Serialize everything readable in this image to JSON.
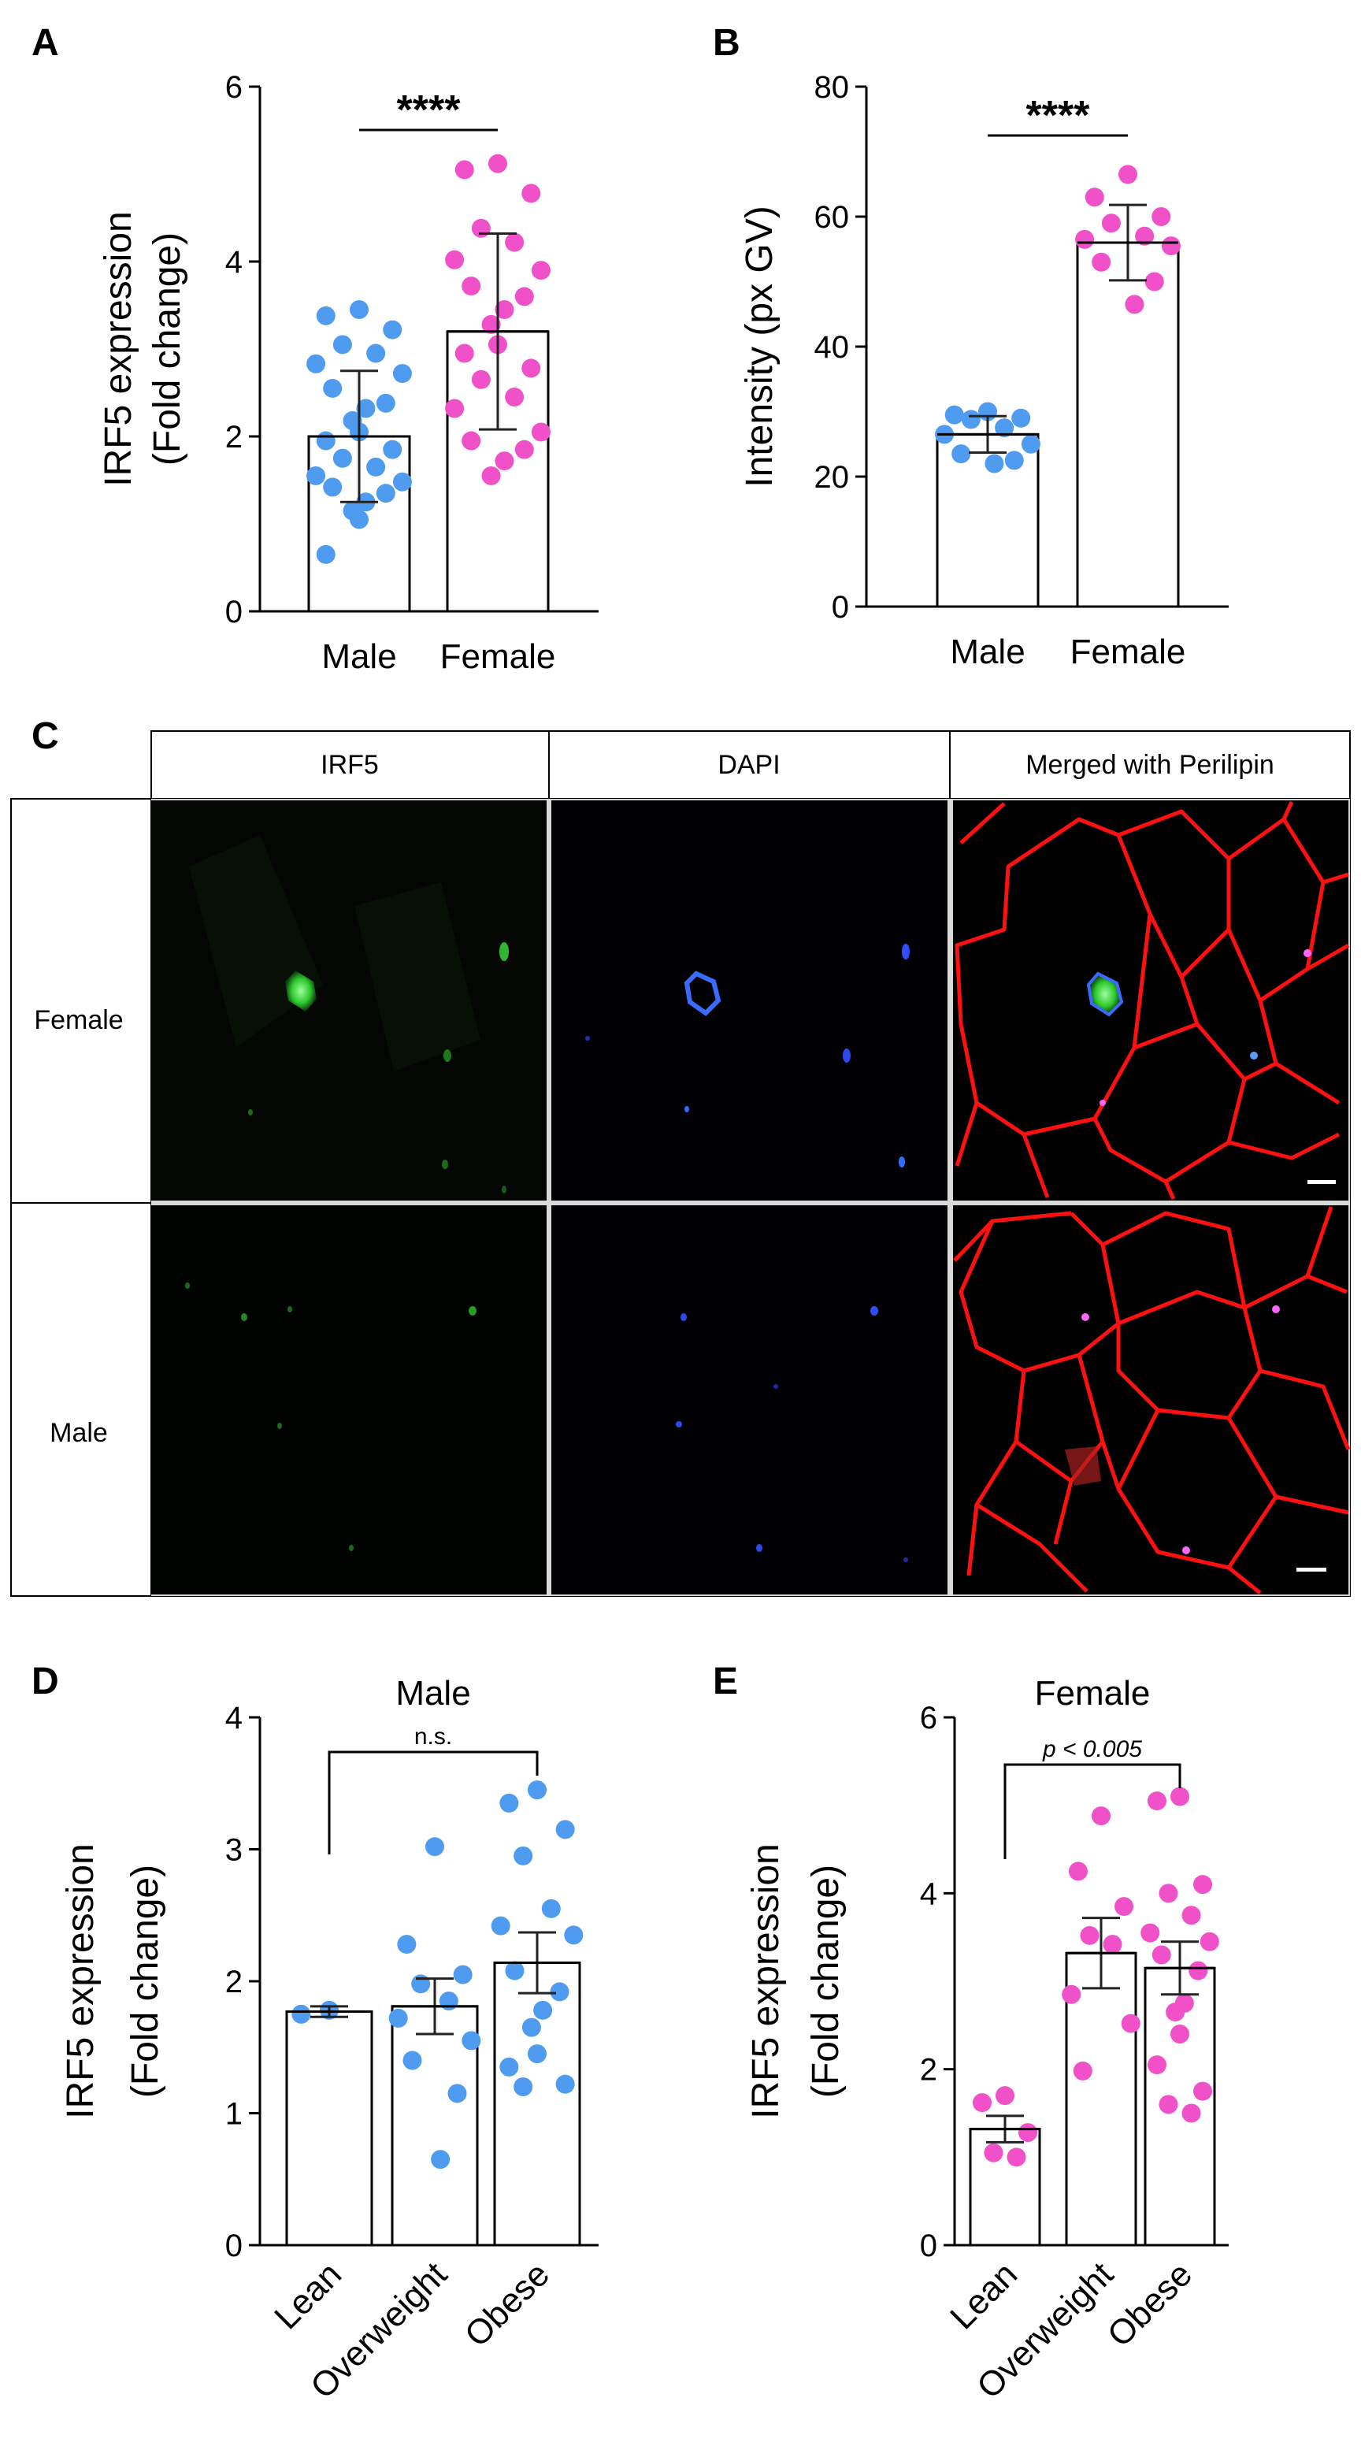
{
  "colors": {
    "male": "#4f9bf0",
    "female": "#f051c8",
    "bar_fill": "#ffffff",
    "axis": "#000000",
    "perilipin": "#ff0000"
  },
  "panel_c": {
    "letter": "C",
    "columns": [
      "IRF5",
      "DAPI",
      "Merged with Perilipin"
    ],
    "rows": [
      "Female",
      "Male"
    ]
  },
  "chart_data": [
    {
      "panel": "A",
      "type": "bar",
      "ylabel_line1": "IRF5 expression",
      "ylabel_line2": "(Fold change)",
      "ylim": [
        0,
        6
      ],
      "yticks": [
        "0",
        "2",
        "4",
        "6"
      ],
      "categories": [
        "Male",
        "Female"
      ],
      "values": [
        2.0,
        3.2
      ],
      "errors": [
        0.75,
        1.12
      ],
      "point_colors": [
        "male",
        "female"
      ],
      "points": [
        [
          3.45,
          3.38,
          3.22,
          3.05,
          2.95,
          2.83,
          2.72,
          2.55,
          2.38,
          2.32,
          2.18,
          2.05,
          1.95,
          1.85,
          1.75,
          1.65,
          1.55,
          1.48,
          1.42,
          1.35,
          1.25,
          1.15,
          1.05,
          0.65
        ],
        [
          5.12,
          5.05,
          4.78,
          4.38,
          4.22,
          4.02,
          3.9,
          3.72,
          3.6,
          3.45,
          3.28,
          3.05,
          2.95,
          2.78,
          2.65,
          2.45,
          2.32,
          2.05,
          1.95,
          1.85,
          1.72,
          1.55
        ]
      ],
      "significance": "****",
      "sig_between": [
        0,
        1
      ],
      "rotate_x": false
    },
    {
      "panel": "B",
      "type": "bar",
      "ylabel_line1": "Intensity (px GV)",
      "ylabel_line2": "",
      "ylim": [
        0,
        80
      ],
      "yticks": [
        "0",
        "20",
        "40",
        "60",
        "80"
      ],
      "categories": [
        "Male",
        "Female"
      ],
      "values": [
        26.5,
        56.0
      ],
      "errors": [
        2.8,
        5.8
      ],
      "point_colors": [
        "male",
        "female"
      ],
      "points": [
        [
          30.0,
          29.5,
          29.0,
          28.8,
          27.5,
          26.5,
          25.0,
          23.5,
          22.5,
          22.0
        ],
        [
          66.5,
          63.0,
          60.0,
          59.0,
          57.0,
          56.5,
          55.5,
          53.0,
          50.0,
          46.5
        ]
      ],
      "significance": "****",
      "sig_between": [
        0,
        1
      ],
      "rotate_x": false
    },
    {
      "panel": "D",
      "type": "bar",
      "title": "Male",
      "ylabel_line1": "IRF5 expression",
      "ylabel_line2": "(Fold change)",
      "ylim": [
        0,
        4
      ],
      "yticks": [
        "0",
        "1",
        "2",
        "3",
        "4"
      ],
      "categories": [
        "Lean",
        "Overweight",
        "Obese"
      ],
      "values": [
        1.77,
        1.81,
        2.14
      ],
      "errors": [
        0.04,
        0.21,
        0.23
      ],
      "point_colors": [
        "male",
        "male",
        "male"
      ],
      "points": [
        [
          1.78,
          1.75
        ],
        [
          3.02,
          2.28,
          2.05,
          1.98,
          1.85,
          1.72,
          1.55,
          1.4,
          1.15,
          0.65
        ],
        [
          3.45,
          3.35,
          3.15,
          2.95,
          2.55,
          2.42,
          2.35,
          2.08,
          1.92,
          1.78,
          1.65,
          1.45,
          1.35,
          1.22,
          1.2
        ]
      ],
      "significance": "n.s.",
      "sig_between": [
        0,
        2
      ],
      "rotate_x": true
    },
    {
      "panel": "E",
      "type": "bar",
      "title": "Female",
      "ylabel_line1": "IRF5 expression",
      "ylabel_line2": "(Fold change)",
      "ylim": [
        0,
        6
      ],
      "yticks": [
        "0",
        "2",
        "4",
        "6"
      ],
      "categories": [
        "Lean",
        "Overweight",
        "Obese"
      ],
      "values": [
        1.32,
        3.32,
        3.15
      ],
      "errors": [
        0.15,
        0.4,
        0.3
      ],
      "point_colors": [
        "female",
        "female",
        "female"
      ],
      "points": [
        [
          1.7,
          1.62,
          1.28,
          1.05,
          1.0
        ],
        [
          4.88,
          4.25,
          3.85,
          3.52,
          3.42,
          2.85,
          2.52,
          1.98
        ],
        [
          5.1,
          5.05,
          4.1,
          4.0,
          3.75,
          3.55,
          3.45,
          3.3,
          3.12,
          2.75,
          2.65,
          2.4,
          2.05,
          1.75,
          1.6,
          1.5
        ]
      ],
      "significance": "p < 0.005",
      "sig_between": [
        0,
        2
      ],
      "rotate_x": true
    }
  ]
}
